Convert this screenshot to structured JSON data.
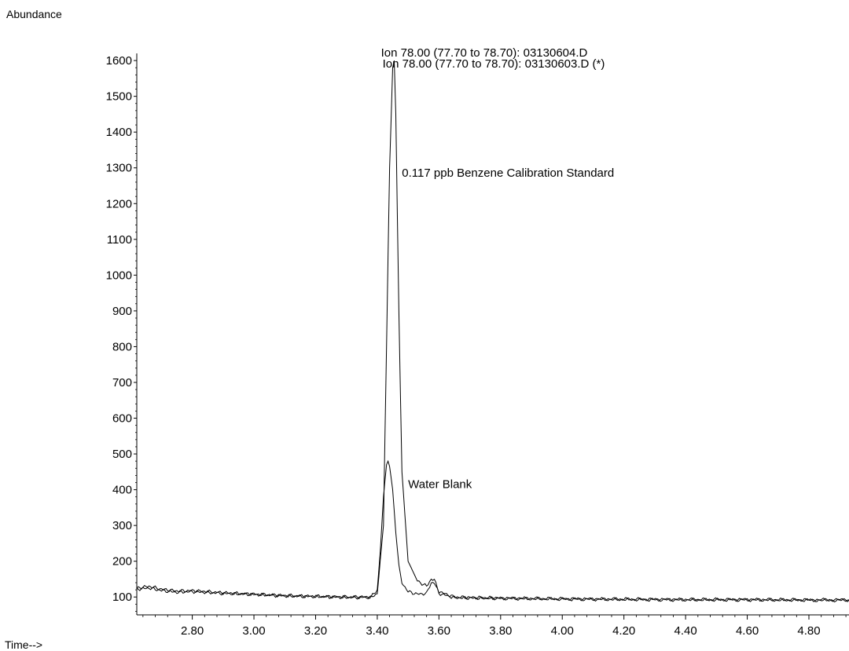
{
  "chart_data": {
    "type": "line",
    "y_axis_title": "Abundance",
    "x_axis_title": "Time-->",
    "xlim": [
      2.62,
      4.93
    ],
    "ylim": [
      50,
      1620
    ],
    "x_ticks": [
      2.8,
      3.0,
      3.2,
      3.4,
      3.6,
      3.8,
      4.0,
      4.2,
      4.4,
      4.6,
      4.8
    ],
    "x_tick_labels": [
      "2.80",
      "3.00",
      "3.20",
      "3.40",
      "3.60",
      "3.80",
      "4.00",
      "4.20",
      "4.40",
      "4.60",
      "4.80"
    ],
    "y_ticks": [
      100,
      200,
      300,
      400,
      500,
      600,
      700,
      800,
      900,
      1000,
      1100,
      1200,
      1300,
      1400,
      1500,
      1600
    ],
    "y_tick_labels": [
      "100",
      "200",
      "300",
      "400",
      "500",
      "600",
      "700",
      "800",
      "900",
      "1000",
      "1100",
      "1200",
      "1300",
      "1400",
      "1500",
      "1600"
    ],
    "legend_lines": [
      "Ion  78.00 (77.70 to 78.70): 03130604.D",
      "Ion  78.00 (77.70 to 78.70): 03130603.D (*)"
    ],
    "annotations": [
      {
        "text": "0.117 ppb Benzene Calibration Standard",
        "x": 3.48,
        "y": 1275
      },
      {
        "text": "Water Blank",
        "x": 3.5,
        "y": 405
      }
    ],
    "series": [
      {
        "x": [
          2.62,
          2.66,
          2.7,
          2.75,
          2.8,
          2.9,
          3.0,
          3.1,
          3.2,
          3.3,
          3.38,
          3.4,
          3.42,
          3.43,
          3.44,
          3.45,
          3.455,
          3.46,
          3.47,
          3.48,
          3.5,
          3.53,
          3.56,
          3.575,
          3.585,
          3.6,
          3.65,
          3.7,
          3.8,
          4.0,
          4.2,
          4.4,
          4.6,
          4.8,
          4.93
        ],
        "values": [
          122,
          125,
          118,
          113,
          115,
          110,
          107,
          103,
          101,
          99,
          99,
          110,
          300,
          800,
          1300,
          1580,
          1600,
          1450,
          900,
          450,
          200,
          145,
          130,
          150,
          148,
          115,
          100,
          99,
          97,
          95,
          94,
          93,
          93,
          92,
          92
        ]
      },
      {
        "x": [
          2.62,
          2.66,
          2.7,
          2.75,
          2.8,
          2.9,
          3.0,
          3.1,
          3.2,
          3.3,
          3.38,
          3.4,
          3.41,
          3.42,
          3.43,
          3.435,
          3.44,
          3.45,
          3.46,
          3.47,
          3.48,
          3.5,
          3.53,
          3.56,
          3.575,
          3.585,
          3.6,
          3.65,
          3.7,
          3.8,
          4.0,
          4.2,
          4.4,
          4.6,
          4.8,
          4.93
        ],
        "values": [
          125,
          130,
          122,
          117,
          118,
          112,
          108,
          104,
          102,
          100,
          100,
          120,
          230,
          380,
          470,
          480,
          465,
          400,
          280,
          190,
          140,
          115,
          108,
          110,
          140,
          140,
          110,
          98,
          97,
          96,
          94,
          93,
          92,
          92,
          91,
          91
        ]
      }
    ]
  }
}
